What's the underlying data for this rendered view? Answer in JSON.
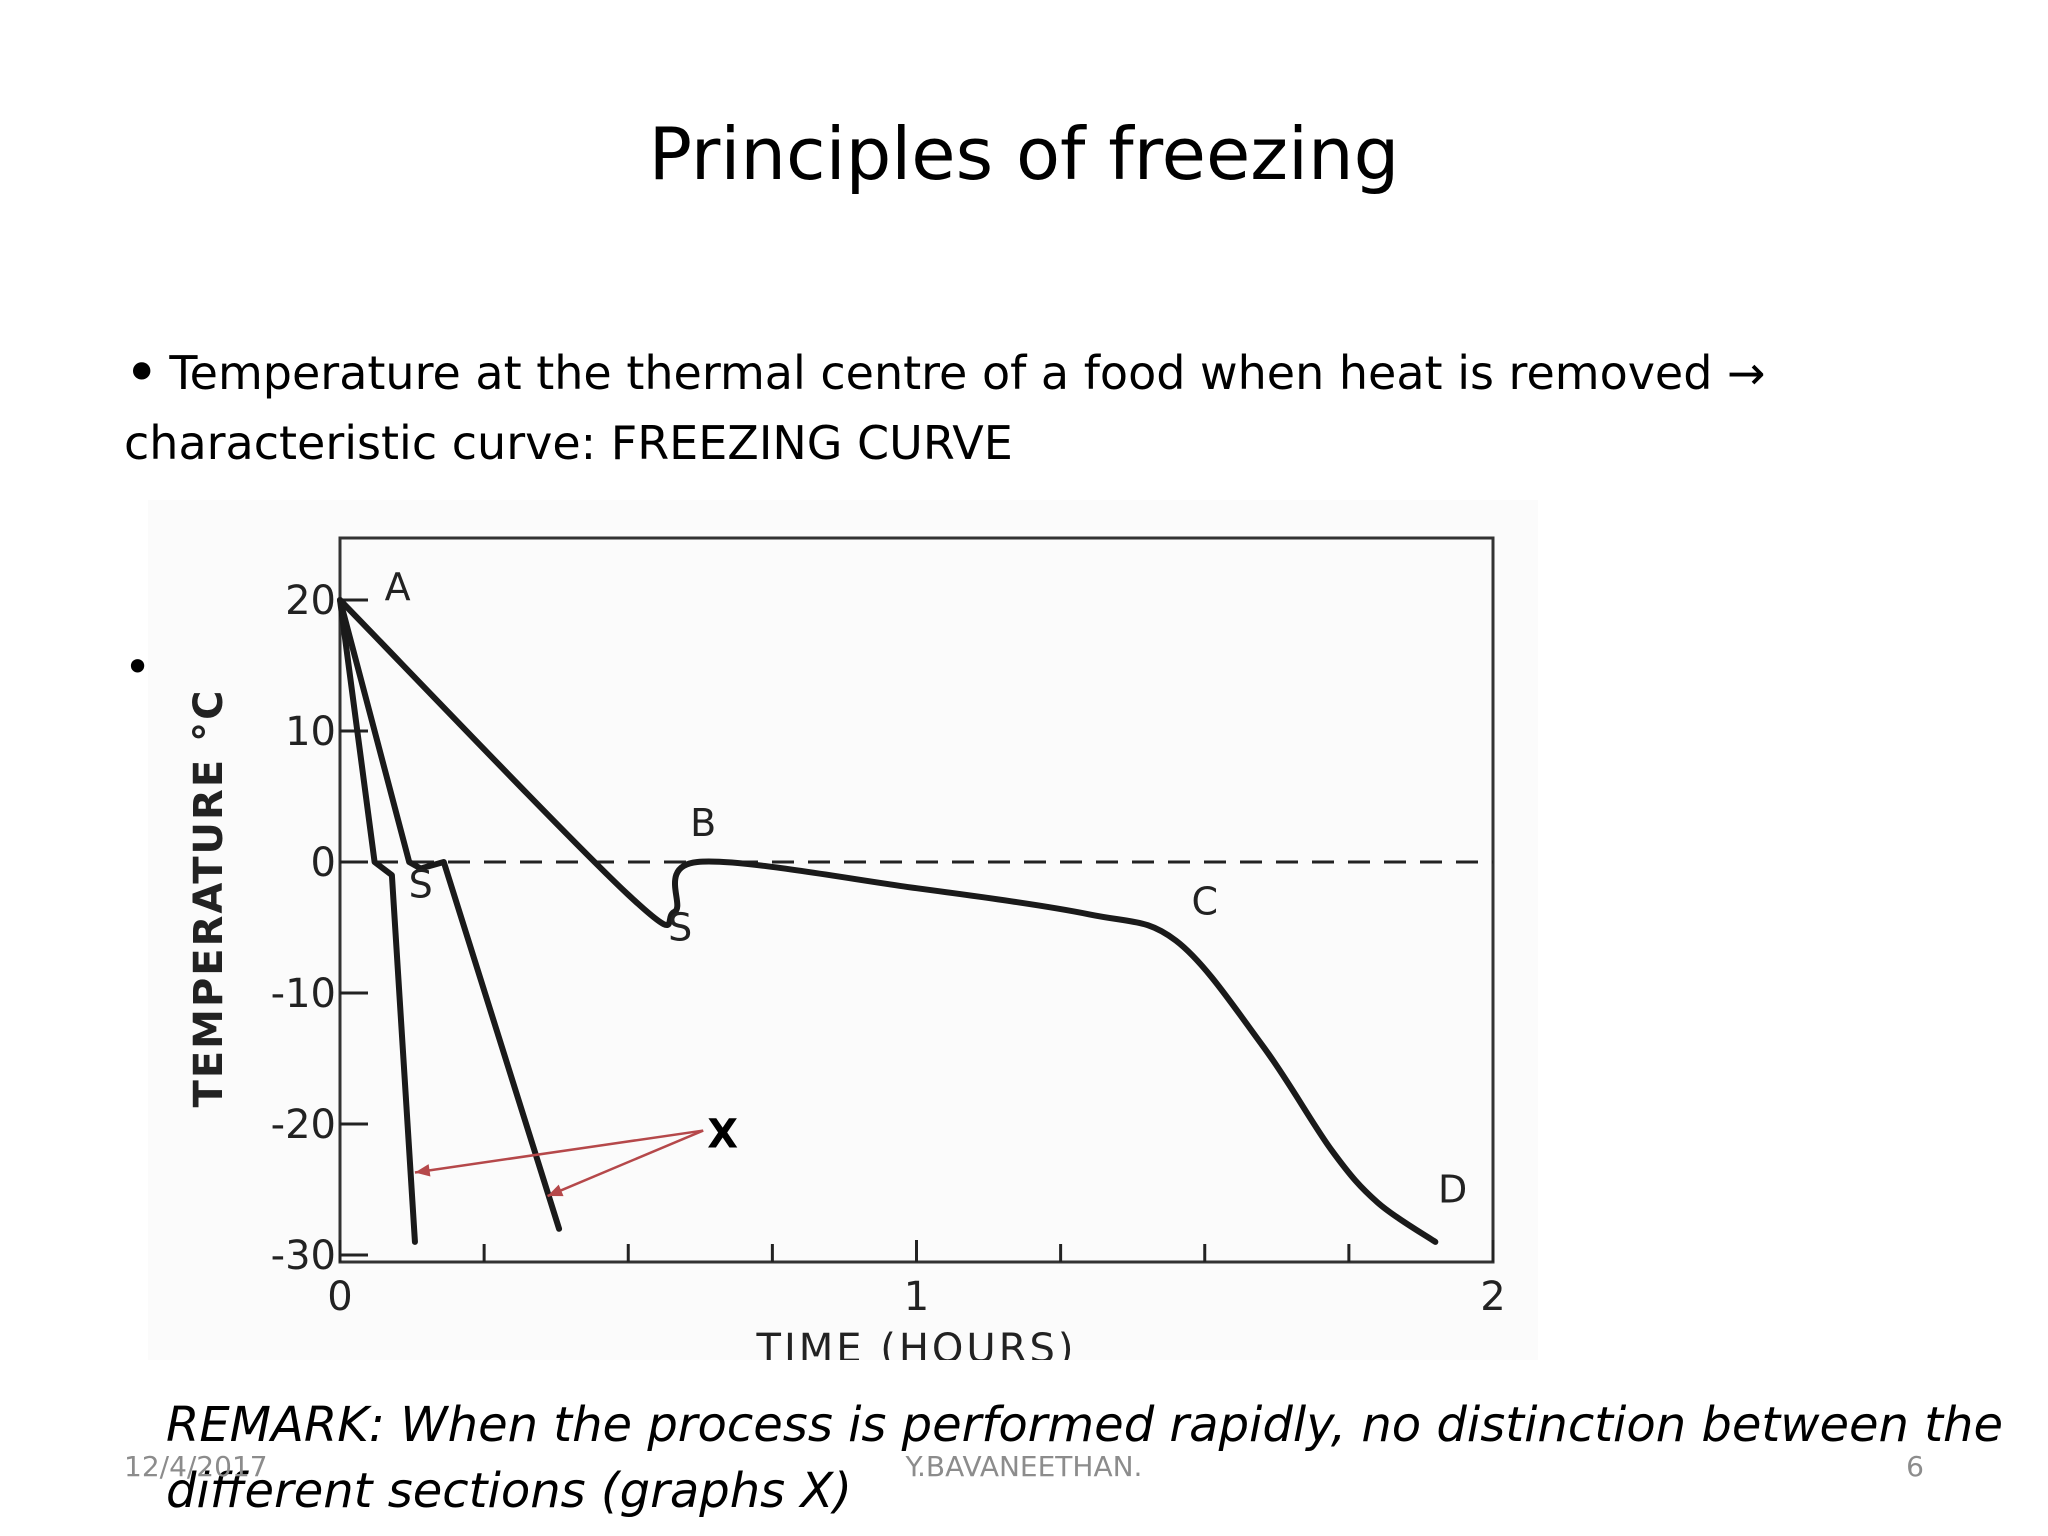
{
  "slide": {
    "title": "Principles of freezing",
    "bullet_line1": "Temperature at the thermal centre of a food when heat is removed →",
    "bullet_line2": "characteristic curve: FREEZING CURVE",
    "bullet_symbol": "•",
    "remark": "REMARK: When the process is performed rapidly, no distinction between the different sections (graphs X)"
  },
  "footer": {
    "date": "12/4/2017",
    "author": "Y.BAVANEETHAN.",
    "page": "6"
  },
  "colors": {
    "curve": "#1a1a1a",
    "annotation_arrow": "#b5484a",
    "footer_text": "#8c8c8c"
  },
  "chart_data": {
    "type": "line",
    "xlabel": "TIME (HOURS)",
    "ylabel": "TEMPERATURE °C",
    "xlim": [
      0,
      2
    ],
    "ylim": [
      -30,
      25
    ],
    "x_ticks": [
      {
        "value": 0,
        "label": "0"
      },
      {
        "value": 1,
        "label": "1"
      },
      {
        "value": 2,
        "label": "2"
      }
    ],
    "x_minor_ticks": [
      0.25,
      0.5,
      0.75,
      1.25,
      1.5,
      1.75
    ],
    "y_ticks": [
      {
        "value": 20,
        "label": "20"
      },
      {
        "value": 10,
        "label": "10"
      },
      {
        "value": 0,
        "label": "0"
      },
      {
        "value": -10,
        "label": "-10"
      },
      {
        "value": -20,
        "label": "-20"
      },
      {
        "value": -30,
        "label": "-30"
      }
    ],
    "reference_line": {
      "y": 0,
      "style": "dashed"
    },
    "series": [
      {
        "points": [
          [
            0,
            20
          ],
          [
            0.06,
            0
          ],
          [
            0.09,
            -1
          ],
          [
            0.13,
            -29
          ]
        ]
      },
      {
        "points": [
          [
            0,
            20
          ],
          [
            0.12,
            0
          ],
          [
            0.14,
            -0.5
          ],
          [
            0.18,
            0
          ],
          [
            0.38,
            -28
          ]
        ]
      },
      {
        "points": [
          [
            0,
            20
          ],
          [
            0.5,
            -2.5
          ],
          [
            0.58,
            -3.8
          ],
          [
            0.62,
            0
          ],
          [
            1.0,
            -2
          ],
          [
            1.3,
            -4
          ],
          [
            1.45,
            -6
          ],
          [
            1.6,
            -14
          ],
          [
            1.72,
            -22
          ],
          [
            1.8,
            -26
          ],
          [
            1.9,
            -29
          ]
        ]
      }
    ],
    "point_labels": [
      {
        "text": "A",
        "x": 0.1,
        "y": 20
      },
      {
        "text": "B",
        "x": 0.63,
        "y": 2
      },
      {
        "text": "C",
        "x": 1.5,
        "y": -4
      },
      {
        "text": "D",
        "x": 1.93,
        "y": -26
      },
      {
        "text": "S",
        "x": 0.14,
        "y": -2.7
      },
      {
        "text": "S",
        "x": 0.59,
        "y": -6
      }
    ],
    "annotation": {
      "text": "X",
      "anchor": [
        0.63,
        -20.5
      ],
      "targets": [
        [
          0.13,
          -23.7
        ],
        [
          0.36,
          -25.5
        ]
      ]
    }
  }
}
